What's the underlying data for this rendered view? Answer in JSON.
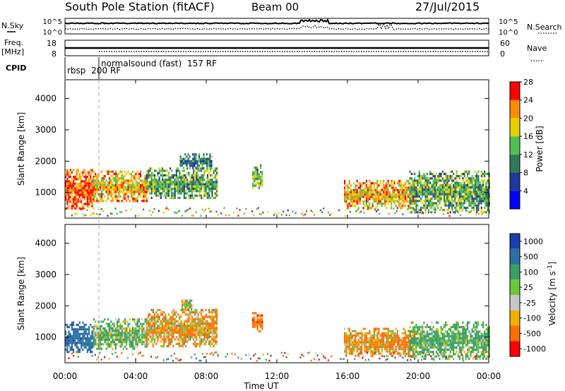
{
  "header": {
    "station": "South Pole Station (fitACF)",
    "beam": "Beam 00",
    "date": "27/Jul/2015"
  },
  "left_labels": {
    "nsky": "N.Sky",
    "freq": "Freq.",
    "mhz": "[MHz]",
    "cpid": "CPID"
  },
  "right_labels": {
    "nsearch": "N.Search",
    "nave": "Nave"
  },
  "ticks": {
    "nsky_left": [
      "10^5",
      "10^0"
    ],
    "nsky_right": [
      "10^5",
      "10^0"
    ],
    "freq_left": [
      "18",
      "8"
    ],
    "nave_right": [
      "60",
      "0"
    ]
  },
  "cpid": [
    {
      "name": "rbsp",
      "id": "200 RF"
    },
    {
      "name": "normalsound (fast)",
      "id": "157 RF"
    }
  ],
  "chart_data": [
    {
      "type": "heatmap",
      "name": "Power [dB]",
      "xlabel": "Time UT",
      "ylabel": "Slant Range [km]",
      "xlim": [
        0,
        24
      ],
      "ylim": [
        180,
        4600
      ],
      "x_ticks": [
        "00:00",
        "04:00",
        "08:00",
        "12:00",
        "16:00",
        "20:00",
        "00:00"
      ],
      "y_ticks": [
        1000,
        2000,
        3000,
        4000
      ],
      "colorbar_label": "Power [dB]",
      "colorbar_ticks": [
        "4",
        "8",
        "12",
        "16",
        "20",
        "24",
        "28"
      ],
      "colorbar_range": [
        0,
        31
      ],
      "colors": [
        "#0000ff",
        "#1e3a9a",
        "#2f7a5a",
        "#52c050",
        "#e8d000",
        "#ff8c00",
        "#ff0000"
      ],
      "regions": [
        {
          "t": [
            0.0,
            1.6
          ],
          "r": [
            500,
            1750
          ],
          "v": 27
        },
        {
          "t": [
            1.6,
            4.6
          ],
          "r": [
            700,
            1700
          ],
          "v": 22
        },
        {
          "t": [
            4.6,
            8.6
          ],
          "r": [
            800,
            1800
          ],
          "v": 14
        },
        {
          "t": [
            6.5,
            8.3
          ],
          "r": [
            1750,
            2250
          ],
          "v": 11
        },
        {
          "t": [
            10.6,
            11.2
          ],
          "r": [
            1100,
            1900
          ],
          "v": 15
        },
        {
          "t": [
            15.8,
            19.8
          ],
          "r": [
            500,
            1400
          ],
          "v": 22
        },
        {
          "t": [
            19.5,
            24.0
          ],
          "r": [
            400,
            1700
          ],
          "v": 14
        }
      ]
    },
    {
      "type": "heatmap",
      "name": "Velocity [m s^-1]",
      "xlabel": "Time UT",
      "ylabel": "Slant Range [km]",
      "xlim": [
        0,
        24
      ],
      "ylim": [
        180,
        4600
      ],
      "x_ticks": [
        "00:00",
        "04:00",
        "08:00",
        "12:00",
        "16:00",
        "20:00",
        "00:00"
      ],
      "y_ticks": [
        1000,
        2000,
        3000,
        4000
      ],
      "colorbar_label": "Velocity [m s",
      "colorbar_unit_sup": "-1",
      "colorbar_unit_end": "]",
      "colorbar_ticks": [
        "1000",
        "500",
        "100",
        "25",
        "-25",
        "-100",
        "-500",
        "-1000"
      ],
      "colors": [
        "#1a3fb0",
        "#2a70a0",
        "#3aa060",
        "#6ac93a",
        "#c8c8c8",
        "#f0b000",
        "#ff7000",
        "#ff0000"
      ],
      "regions": [
        {
          "t": [
            0.0,
            1.6
          ],
          "r": [
            500,
            1500
          ],
          "v": 800
        },
        {
          "t": [
            1.6,
            4.6
          ],
          "r": [
            600,
            1600
          ],
          "v": 150
        },
        {
          "t": [
            4.6,
            8.6
          ],
          "r": [
            700,
            1900
          ],
          "v": -120
        },
        {
          "t": [
            6.6,
            7.2
          ],
          "r": [
            1850,
            2200
          ],
          "v": 0
        },
        {
          "t": [
            10.6,
            11.2
          ],
          "r": [
            1200,
            1800
          ],
          "v": -300
        },
        {
          "t": [
            15.8,
            19.8
          ],
          "r": [
            400,
            1300
          ],
          "v": -150
        },
        {
          "t": [
            19.5,
            24.0
          ],
          "r": [
            300,
            1500
          ],
          "v": 200
        }
      ]
    }
  ]
}
